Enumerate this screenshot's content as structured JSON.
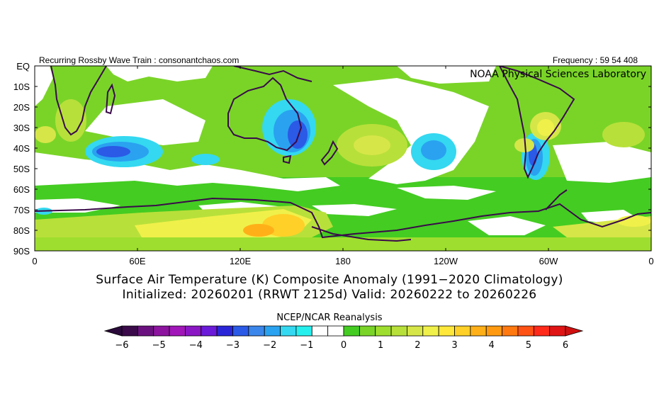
{
  "header": {
    "left_text": "Recurring Rossby Wave Train : consonantchaos.com",
    "right_text": "Frequency : 59 54 408",
    "org": "NOAA Physical Sciences Laboratory"
  },
  "map": {
    "lat_labels": [
      "EQ",
      "10S",
      "20S",
      "30S",
      "40S",
      "50S",
      "60S",
      "70S",
      "80S",
      "90S"
    ],
    "lon_labels": [
      "0",
      "60E",
      "120E",
      "180",
      "120W",
      "60W",
      "0"
    ]
  },
  "caption": {
    "line1": "Surface Air Temperature (K) Composite Anomaly (1991−2020 Climatology)",
    "line2": "Initialized: 20260201 (RRWT 2125d) Valid: 20260222 to 20260226"
  },
  "colorbar": {
    "label": "NCEP/NCAR Reanalysis",
    "ticks": [
      "−6",
      "−5",
      "−4",
      "−3",
      "−2",
      "−1",
      "0",
      "1",
      "2",
      "3",
      "4",
      "5",
      "6"
    ],
    "colors": [
      "#3a0a4a",
      "#6b117f",
      "#8d149f",
      "#a016b8",
      "#8a16c4",
      "#6a1ad8",
      "#2a26d8",
      "#2a5ae6",
      "#3a86ea",
      "#2aa2f0",
      "#34d8f0",
      "#26f0ee",
      "#ffffff",
      "#ffffff",
      "#44cc22",
      "#7ad428",
      "#9ede2e",
      "#b8e03a",
      "#d6e648",
      "#f0f04a",
      "#ffe83a",
      "#ffd028",
      "#ffb018",
      "#ff9a10",
      "#ff7810",
      "#ff5214",
      "#ff2a1a",
      "#e01414"
    ],
    "under_color": "#2a0a3a",
    "over_color": "#d01010"
  }
}
